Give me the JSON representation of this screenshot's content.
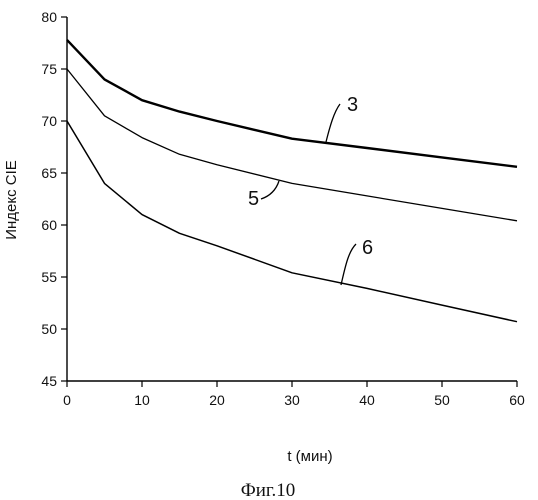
{
  "chart_data": {
    "type": "line",
    "caption": "Фиг.10",
    "xlabel": "t (мин)",
    "ylabel": "Индекс CIE",
    "xlim": [
      0,
      60
    ],
    "ylim": [
      45,
      80
    ],
    "xticks": [
      0,
      10,
      20,
      30,
      40,
      50,
      60
    ],
    "yticks": [
      45,
      50,
      55,
      60,
      65,
      70,
      75,
      80
    ],
    "grid": false,
    "series": [
      {
        "name": "3",
        "x": [
          0,
          5,
          10,
          15,
          20,
          30,
          40,
          50,
          60
        ],
        "y": [
          77.8,
          74.0,
          72.0,
          70.9,
          70.0,
          68.3,
          67.4,
          66.5,
          65.6
        ]
      },
      {
        "name": "5",
        "x": [
          0,
          5,
          10,
          15,
          20,
          30,
          40,
          50,
          60
        ],
        "y": [
          75.0,
          70.5,
          68.4,
          66.8,
          65.8,
          64.0,
          62.8,
          61.6,
          60.4
        ]
      },
      {
        "name": "6",
        "x": [
          0,
          5,
          10,
          15,
          20,
          30,
          40,
          50,
          60
        ],
        "y": [
          70.0,
          64.0,
          61.0,
          59.2,
          58.0,
          55.4,
          53.9,
          52.3,
          50.7
        ]
      }
    ]
  }
}
